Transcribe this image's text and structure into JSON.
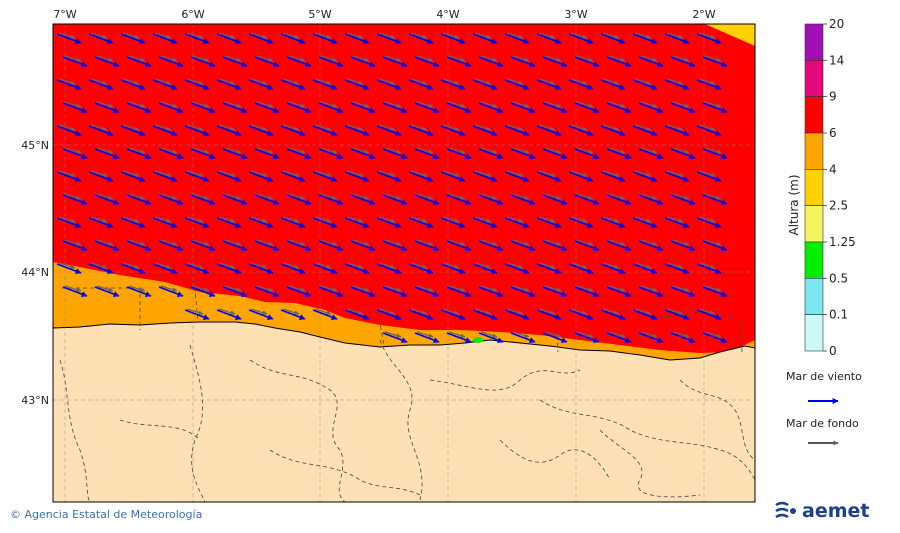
{
  "map": {
    "lon_labels": [
      "7°W",
      "6°W",
      "5°W",
      "4°W",
      "3°W",
      "2°W"
    ],
    "lat_labels": [
      "45°N",
      "44°N",
      "43°N"
    ]
  },
  "colorbar": {
    "title": "Altura (m)",
    "levels": [
      "20",
      "14",
      "9",
      "6",
      "4",
      "2.5",
      "1.25",
      "0.5",
      "0.1",
      "0"
    ],
    "colors": [
      "#a30fb5",
      "#e3087b",
      "#ff0000",
      "#ffa500",
      "#ffd100",
      "#f5f560",
      "#00ee00",
      "#7be8f0",
      "#cdf8f8"
    ]
  },
  "legend": {
    "wind_sea": "Mar de viento",
    "swell": "Mar de fondo",
    "wind_sea_color": "#0000ee",
    "swell_color": "#555555"
  },
  "footer": {
    "credit": "© Agencia Estatal de Meteorología",
    "logo": "aemet"
  }
}
